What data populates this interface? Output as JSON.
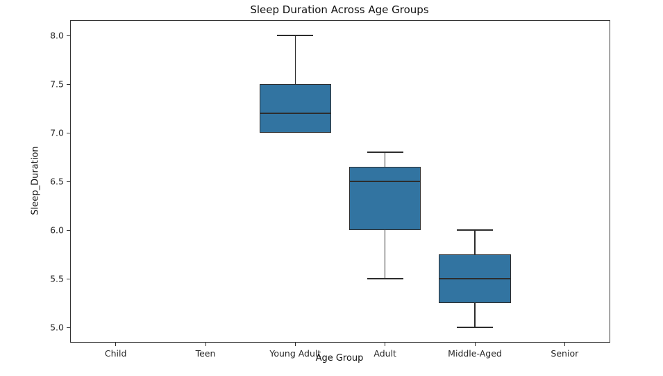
{
  "chart_data": {
    "type": "box",
    "title": "Sleep Duration Across Age Groups",
    "xlabel": "Age Group",
    "ylabel": "Sleep_Duration",
    "categories": [
      "Child",
      "Teen",
      "Young Adult",
      "Adult",
      "Middle-Aged",
      "Senior"
    ],
    "yticks": [
      5.0,
      5.5,
      6.0,
      6.5,
      7.0,
      7.5,
      8.0
    ],
    "ytick_labels": [
      "5.0",
      "5.5",
      "6.0",
      "6.5",
      "7.0",
      "7.5",
      "8.0"
    ],
    "ylim": [
      4.85,
      8.15
    ],
    "grid": false,
    "legend": "none",
    "box_fill_color": "#3274a1",
    "line_color": "#2d2d2d",
    "boxes": [
      {
        "category": "Child",
        "stats": null
      },
      {
        "category": "Teen",
        "stats": null
      },
      {
        "category": "Young Adult",
        "stats": {
          "whislo": 7.0,
          "q1": 7.0,
          "med": 7.2,
          "q3": 7.5,
          "whishi": 8.0
        }
      },
      {
        "category": "Adult",
        "stats": {
          "whislo": 5.5,
          "q1": 6.0,
          "med": 6.5,
          "q3": 6.65,
          "whishi": 6.8
        }
      },
      {
        "category": "Middle-Aged",
        "stats": {
          "whislo": 5.0,
          "q1": 5.25,
          "med": 5.5,
          "q3": 5.75,
          "whishi": 6.0
        }
      },
      {
        "category": "Senior",
        "stats": null
      }
    ]
  }
}
